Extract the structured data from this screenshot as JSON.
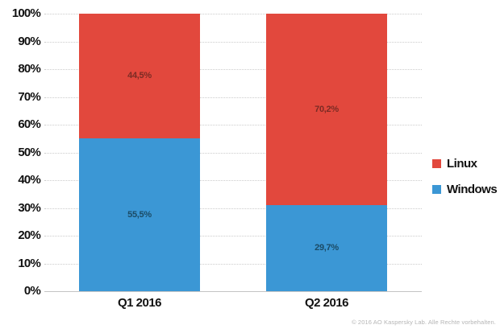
{
  "chart_data": {
    "type": "bar",
    "stacked": true,
    "categories": [
      "Q1 2016",
      "Q2 2016"
    ],
    "series": [
      {
        "name": "Linux",
        "color": "#e2483d",
        "label_color": "#7b2b24",
        "values": [
          44.5,
          70.2
        ],
        "labels": [
          "44,5%",
          "70,2%"
        ]
      },
      {
        "name": "Windows",
        "color": "#3b97d5",
        "label_color": "#1b4b66",
        "values": [
          55.5,
          29.7
        ],
        "labels": [
          "55,5%",
          "29,7%"
        ]
      }
    ],
    "title": "",
    "xlabel": "",
    "ylabel": "",
    "ylim": [
      0,
      100
    ],
    "y_ticks": [
      "100%",
      "90%",
      "80%",
      "70%",
      "60%",
      "50%",
      "40%",
      "30%",
      "20%",
      "10%",
      "0%"
    ],
    "grid": "horizontal-dotted",
    "legend_position": "right"
  },
  "legend": {
    "items": [
      {
        "label": "Linux",
        "color": "#e2483d"
      },
      {
        "label": "Windows",
        "color": "#3b97d5"
      }
    ]
  },
  "footer": {
    "copyright": "© 2016 AO Kaspersky Lab. Alle Rechte vorbehalten."
  }
}
